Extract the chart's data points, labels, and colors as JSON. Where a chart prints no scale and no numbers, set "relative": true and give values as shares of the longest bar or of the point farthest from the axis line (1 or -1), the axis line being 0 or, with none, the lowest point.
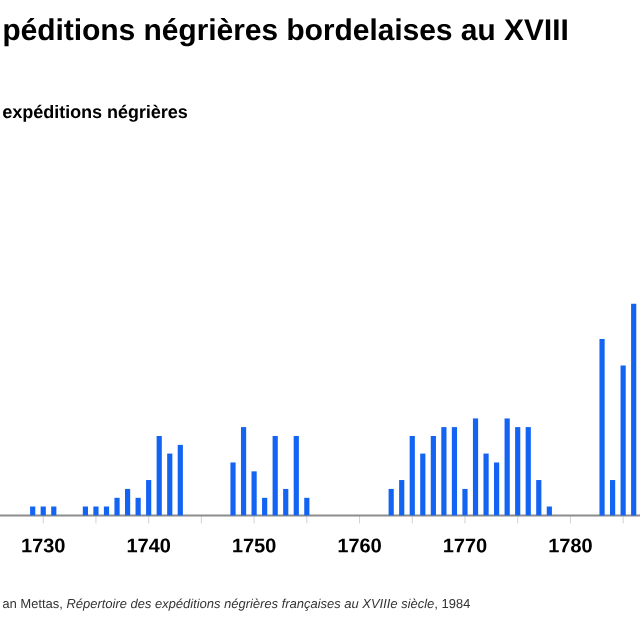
{
  "chart_data": {
    "type": "bar",
    "title": "péditions négrières bordelaises au XVIII",
    "subtitle": "expéditions négrières",
    "annotations": [
      "an Mettas, *Répertoire des expéditions négrières françaises au XVIIIe siècle*, 1984"
    ],
    "relative": true,
    "color": "#1464f4",
    "x": [
      1729,
      1730,
      1731,
      1734,
      1735,
      1736,
      1737,
      1738,
      1739,
      1740,
      1741,
      1742,
      1743,
      1748,
      1749,
      1750,
      1751,
      1752,
      1753,
      1754,
      1755,
      1763,
      1764,
      1765,
      1766,
      1767,
      1768,
      1769,
      1770,
      1771,
      1772,
      1773,
      1774,
      1775,
      1776,
      1777,
      1778,
      1783,
      1784,
      1785,
      1786
    ],
    "values": [
      0.042,
      0.042,
      0.042,
      0.042,
      0.042,
      0.042,
      0.083,
      0.125,
      0.083,
      0.167,
      0.375,
      0.292,
      0.333,
      0.25,
      0.417,
      0.208,
      0.083,
      0.375,
      0.125,
      0.375,
      0.083,
      0.125,
      0.167,
      0.375,
      0.292,
      0.375,
      0.417,
      0.417,
      0.125,
      0.458,
      0.292,
      0.25,
      0.458,
      0.417,
      0.417,
      0.167,
      0.042,
      0.833,
      0.167,
      0.708,
      1
    ],
    "xlim": [
      1725.9,
      1786.6
    ],
    "xticks": [
      1730,
      {
        "value": 1735,
        "label": null
      },
      1740,
      {
        "value": 1745,
        "label": null
      },
      1750,
      {
        "value": 1755,
        "label": null
      },
      1760,
      {
        "value": 1765,
        "label": null
      },
      1770,
      {
        "value": 1775,
        "label": null
      },
      1780,
      {
        "value": 1785,
        "label": null
      }
    ]
  }
}
